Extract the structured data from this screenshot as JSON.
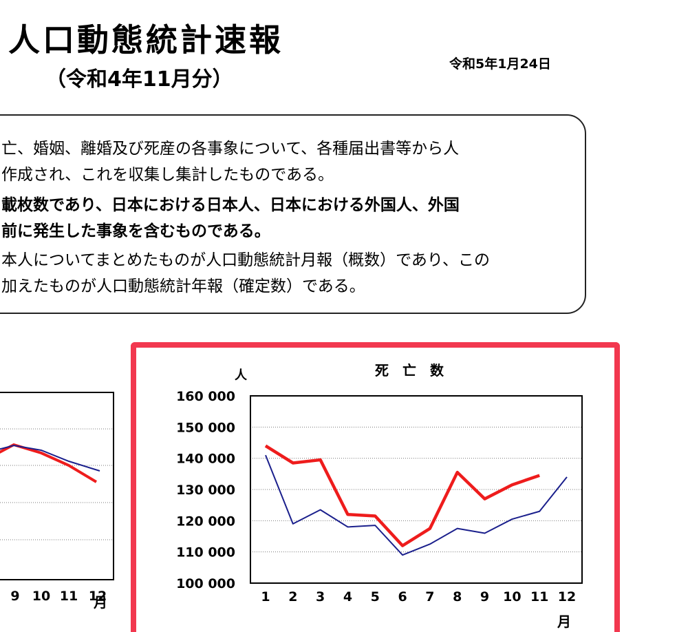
{
  "header": {
    "title": "人口動態統計速報",
    "subtitle": "（令和4年11月分）",
    "date": "令和5年1月24日"
  },
  "notes": [
    {
      "text": "亡、婚姻、離婚及び死産の各事象について、各種届出書等から人",
      "bold": false
    },
    {
      "text": "作成され、これを収集し集計したものである。",
      "bold": false
    },
    {
      "text": "載枚数であり、日本における日本人、日本における外国人、外国",
      "bold": true
    },
    {
      "text": "前に発生した事象を含むものである。",
      "bold": true
    },
    {
      "text": "本人についてまとめたものが人口動態統計月報（概数）であり、この",
      "bold": false
    },
    {
      "text": "加えたものが人口動態統計年報（確定数）である。",
      "bold": false
    }
  ],
  "colors": {
    "current": "#ee1c1c",
    "previous": "#1a1f8c"
  },
  "chart_data": [
    {
      "type": "line",
      "title": "",
      "x": [
        9,
        10,
        11,
        12
      ],
      "xlabel": "月",
      "series": [
        {
          "values": [
            null,
            null,
            null,
            null
          ],
          "partial_visible_values_normalized": null
        }
      ],
      "note": ""
    },
    {
      "type": "line",
      "title": "死　亡　数",
      "ylabel": "人",
      "xlabel": "月",
      "ylim": [
        100000,
        160000
      ],
      "yticks": [
        "100 000",
        "110 000",
        "120 000",
        "130 000",
        "140 000",
        "150 000",
        "160 000"
      ],
      "x": [
        1,
        2,
        3,
        4,
        5,
        6,
        7,
        8,
        9,
        10,
        11,
        12
      ],
      "grid": true,
      "series": [
        {
          "style": "thick-red",
          "values": [
            144000,
            138500,
            139500,
            122000,
            121500,
            112000,
            117500,
            135500,
            127000,
            131500,
            134500,
            null
          ]
        },
        {
          "style": "thin-navy",
          "values": [
            141000,
            119000,
            123500,
            118000,
            118500,
            109000,
            112500,
            117500,
            116000,
            120500,
            123000,
            134000
          ]
        }
      ]
    }
  ]
}
